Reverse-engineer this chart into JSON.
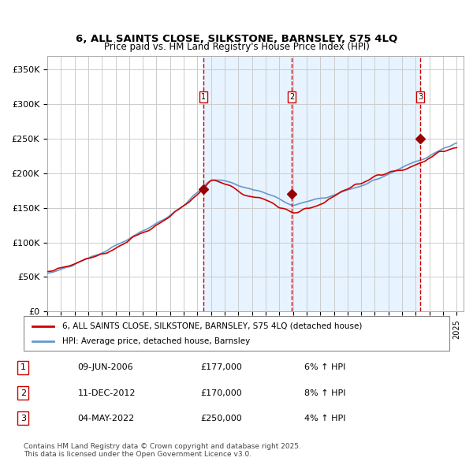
{
  "title1": "6, ALL SAINTS CLOSE, SILKSTONE, BARNSLEY, S75 4LQ",
  "title2": "Price paid vs. HM Land Registry's House Price Index (HPI)",
  "ylabel_ticks": [
    "£0",
    "£50K",
    "£100K",
    "£150K",
    "£200K",
    "£250K",
    "£300K",
    "£350K"
  ],
  "ytick_vals": [
    0,
    50000,
    100000,
    150000,
    200000,
    250000,
    300000,
    350000
  ],
  "ylim": [
    0,
    370000
  ],
  "x_start_year": 1995,
  "x_end_year": 2025,
  "sale_dates": [
    "2006-06-09",
    "2012-12-11",
    "2022-05-04"
  ],
  "sale_prices": [
    177000,
    170000,
    250000
  ],
  "sale_labels": [
    "1",
    "2",
    "3"
  ],
  "sale_table": [
    [
      "1",
      "09-JUN-2006",
      "£177,000",
      "6% ↑ HPI"
    ],
    [
      "2",
      "11-DEC-2012",
      "£170,000",
      "8% ↑ HPI"
    ],
    [
      "3",
      "04-MAY-2022",
      "£250,000",
      "4% ↑ HPI"
    ]
  ],
  "legend_line1": "6, ALL SAINTS CLOSE, SILKSTONE, BARNSLEY, S75 4LQ (detached house)",
  "legend_line2": "HPI: Average price, detached house, Barnsley",
  "footer": "Contains HM Land Registry data © Crown copyright and database right 2025.\nThis data is licensed under the Open Government Licence v3.0.",
  "line_color_red": "#cc0000",
  "line_color_blue": "#6699cc",
  "bg_shade_color": "#ddeeff",
  "grid_color": "#cccccc",
  "sale_marker_color": "#990000",
  "dashed_line_color": "#cc0000",
  "label_box_color": "#cc0000"
}
